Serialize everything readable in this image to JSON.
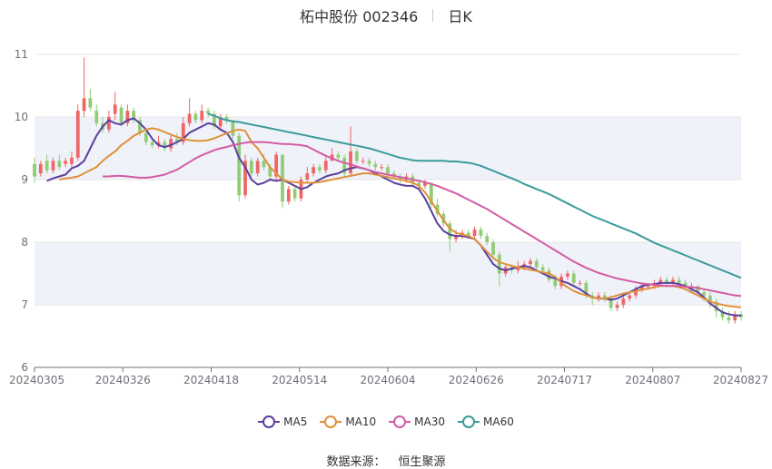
{
  "title": {
    "name": "柘中股份 002346",
    "period": "日K"
  },
  "source": {
    "label": "数据来源：",
    "value": "恒生聚源"
  },
  "chart_data": {
    "type": "candlestick",
    "ylim": [
      6,
      11
    ],
    "yticks": [
      6,
      7,
      8,
      9,
      10,
      11
    ],
    "xticks": [
      "20240305",
      "20240326",
      "20240418",
      "20240514",
      "20240604",
      "20240626",
      "20240717",
      "20240807",
      "20240827"
    ],
    "colors": {
      "up": "#ee6666",
      "down": "#91cc75",
      "ma5": "#5b3f9e",
      "ma10": "#e0913a",
      "ma30": "#d45ba3",
      "ma60": "#3b9b9b",
      "band": "#f0f2fa",
      "grid": "#e6e6e6",
      "axis": "#6e7079"
    },
    "legend": [
      {
        "name": "MA5",
        "key": "ma5"
      },
      {
        "name": "MA10",
        "key": "ma10"
      },
      {
        "name": "MA30",
        "key": "ma30"
      },
      {
        "name": "MA60",
        "key": "ma60"
      }
    ],
    "close": [
      9.05,
      9.25,
      9.15,
      9.3,
      9.2,
      9.3,
      9.35,
      10.1,
      10.3,
      10.15,
      9.9,
      9.8,
      10.0,
      10.2,
      9.9,
      10.1,
      9.95,
      9.75,
      9.6,
      9.55,
      9.6,
      9.5,
      9.65,
      9.6,
      9.9,
      10.05,
      9.95,
      10.1,
      10.05,
      9.85,
      10.0,
      9.95,
      9.7,
      8.75,
      9.3,
      9.1,
      9.3,
      9.2,
      9.05,
      9.4,
      8.65,
      8.85,
      8.7,
      9.0,
      9.1,
      9.2,
      9.15,
      9.3,
      9.4,
      9.35,
      9.1,
      9.45,
      9.3,
      9.3,
      9.25,
      9.2,
      9.2,
      9.1,
      9.05,
      9.0,
      9.05,
      8.95,
      8.9,
      8.95,
      8.6,
      8.45,
      8.3,
      8.05,
      8.1,
      8.15,
      8.1,
      8.2,
      8.1,
      8.0,
      7.8,
      7.5,
      7.6,
      7.55,
      7.6,
      7.65,
      7.7,
      7.6,
      7.55,
      7.4,
      7.3,
      7.45,
      7.5,
      7.35,
      7.35,
      7.15,
      7.1,
      7.15,
      7.1,
      6.95,
      7.0,
      7.1,
      7.15,
      7.25,
      7.3,
      7.3,
      7.35,
      7.4,
      7.35,
      7.4,
      7.35,
      7.3,
      7.3,
      7.2,
      7.15,
      7.05,
      6.9,
      6.8,
      6.75,
      6.85,
      6.8
    ],
    "open": [
      9.25,
      9.1,
      9.3,
      9.15,
      9.3,
      9.25,
      9.25,
      9.35,
      10.1,
      10.3,
      10.1,
      9.9,
      9.8,
      10.05,
      10.15,
      9.9,
      10.1,
      9.95,
      9.75,
      9.6,
      9.55,
      9.6,
      9.5,
      9.65,
      9.6,
      9.9,
      10.05,
      9.95,
      10.1,
      10.05,
      9.85,
      10.0,
      9.95,
      9.7,
      8.75,
      9.3,
      9.1,
      9.3,
      9.2,
      9.05,
      9.4,
      8.65,
      8.85,
      8.7,
      9.0,
      9.1,
      9.2,
      9.15,
      9.3,
      9.4,
      9.35,
      9.1,
      9.45,
      9.3,
      9.3,
      9.25,
      9.2,
      9.2,
      9.1,
      9.05,
      9.0,
      9.05,
      8.95,
      8.9,
      8.95,
      8.6,
      8.45,
      8.3,
      8.05,
      8.1,
      8.15,
      8.1,
      8.2,
      8.1,
      8.0,
      7.8,
      7.5,
      7.6,
      7.55,
      7.6,
      7.65,
      7.7,
      7.6,
      7.55,
      7.4,
      7.3,
      7.45,
      7.5,
      7.35,
      7.35,
      7.15,
      7.1,
      7.15,
      7.1,
      6.95,
      7.0,
      7.1,
      7.15,
      7.25,
      7.3,
      7.3,
      7.35,
      7.4,
      7.35,
      7.4,
      7.35,
      7.3,
      7.3,
      7.2,
      7.15,
      7.05,
      6.9,
      6.8,
      6.75,
      6.85
    ],
    "high": [
      9.35,
      9.3,
      9.4,
      9.35,
      9.4,
      9.35,
      9.45,
      10.2,
      10.95,
      10.45,
      10.2,
      10.0,
      10.1,
      10.4,
      10.2,
      10.2,
      10.15,
      10.0,
      9.8,
      9.65,
      9.7,
      9.65,
      9.7,
      9.75,
      10.0,
      10.3,
      10.1,
      10.2,
      10.15,
      10.1,
      10.05,
      10.05,
      9.95,
      9.75,
      9.4,
      9.35,
      9.35,
      9.4,
      9.25,
      9.45,
      9.4,
      8.9,
      8.9,
      9.05,
      9.2,
      9.25,
      9.25,
      9.4,
      9.5,
      9.45,
      9.4,
      9.85,
      9.5,
      9.35,
      9.35,
      9.3,
      9.25,
      9.25,
      9.15,
      9.1,
      9.1,
      9.1,
      9.0,
      9.0,
      8.95,
      8.7,
      8.5,
      8.35,
      8.2,
      8.2,
      8.2,
      8.25,
      8.25,
      8.15,
      8.05,
      7.85,
      7.65,
      7.65,
      7.7,
      7.7,
      7.75,
      7.75,
      7.65,
      7.6,
      7.45,
      7.5,
      7.55,
      7.55,
      7.4,
      7.4,
      7.2,
      7.2,
      7.2,
      7.15,
      7.05,
      7.15,
      7.2,
      7.3,
      7.35,
      7.35,
      7.4,
      7.45,
      7.45,
      7.45,
      7.45,
      7.4,
      7.35,
      7.3,
      7.25,
      7.2,
      7.1,
      6.95,
      6.9,
      6.9,
      6.9
    ],
    "low": [
      8.95,
      9.05,
      9.1,
      9.1,
      9.15,
      9.2,
      9.2,
      9.3,
      10.0,
      10.1,
      9.85,
      9.75,
      9.75,
      9.95,
      9.85,
      9.85,
      9.9,
      9.7,
      9.55,
      9.5,
      9.5,
      9.45,
      9.45,
      9.55,
      9.55,
      9.85,
      9.9,
      9.9,
      10.0,
      9.8,
      9.8,
      9.9,
      9.65,
      8.65,
      8.7,
      9.05,
      9.05,
      9.15,
      9.0,
      9.0,
      8.55,
      8.6,
      8.65,
      8.65,
      8.95,
      9.05,
      9.1,
      9.1,
      9.3,
      9.3,
      9.05,
      9.05,
      9.25,
      9.25,
      9.2,
      9.15,
      9.15,
      9.05,
      9.0,
      8.95,
      8.95,
      8.9,
      8.85,
      8.85,
      8.55,
      8.4,
      8.25,
      7.85,
      8.0,
      8.05,
      8.05,
      8.05,
      8.05,
      7.95,
      7.75,
      7.3,
      7.45,
      7.5,
      7.5,
      7.55,
      7.6,
      7.55,
      7.5,
      7.35,
      7.25,
      7.25,
      7.4,
      7.3,
      7.3,
      7.1,
      7.0,
      7.05,
      7.05,
      6.9,
      6.9,
      6.95,
      7.05,
      7.1,
      7.2,
      7.25,
      7.25,
      7.3,
      7.3,
      7.3,
      7.3,
      7.25,
      7.2,
      7.15,
      7.05,
      6.95,
      6.8,
      6.75,
      6.7,
      6.7,
      6.75
    ],
    "ma5": [
      8.98,
      9.02,
      9.05,
      9.08,
      9.18,
      9.22,
      9.3,
      9.5,
      9.7,
      9.85,
      9.95,
      9.9,
      9.88,
      9.95,
      9.98,
      9.9,
      9.8,
      9.65,
      9.55,
      9.52,
      9.55,
      9.6,
      9.65,
      9.75,
      9.8,
      9.85,
      9.9,
      9.88,
      9.8,
      9.75,
      9.6,
      9.35,
      9.2,
      9.0,
      8.92,
      8.95,
      9.0,
      8.98,
      9.0,
      8.95,
      8.9,
      8.85,
      8.88,
      8.95,
      9.0,
      9.05,
      9.08,
      9.1,
      9.15,
      9.18,
      9.2,
      9.18,
      9.15,
      9.1,
      9.05,
      9.0,
      8.95,
      8.92,
      8.9,
      8.9,
      8.85,
      8.7,
      8.5,
      8.3,
      8.18,
      8.12,
      8.1,
      8.1,
      8.08,
      8.05,
      7.95,
      7.8,
      7.65,
      7.58,
      7.55,
      7.58,
      7.6,
      7.62,
      7.6,
      7.55,
      7.5,
      7.45,
      7.42,
      7.38,
      7.35,
      7.3,
      7.25,
      7.18,
      7.12,
      7.1,
      7.1,
      7.08,
      7.1,
      7.15,
      7.2,
      7.25,
      7.3,
      7.32,
      7.33,
      7.35,
      7.35,
      7.35,
      7.33,
      7.3,
      7.25,
      7.2,
      7.12,
      7.02,
      6.95,
      6.88,
      6.85,
      6.83,
      6.83
    ],
    "ma10": [
      9.0,
      9.02,
      9.03,
      9.05,
      9.1,
      9.15,
      9.2,
      9.3,
      9.38,
      9.45,
      9.55,
      9.62,
      9.7,
      9.75,
      9.8,
      9.82,
      9.8,
      9.76,
      9.72,
      9.68,
      9.65,
      9.63,
      9.62,
      9.62,
      9.63,
      9.66,
      9.7,
      9.74,
      9.78,
      9.8,
      9.78,
      9.6,
      9.5,
      9.35,
      9.2,
      9.1,
      9.0,
      8.97,
      8.96,
      8.95,
      8.95,
      8.95,
      8.96,
      8.98,
      9.0,
      9.02,
      9.04,
      9.06,
      9.08,
      9.1,
      9.1,
      9.08,
      9.06,
      9.04,
      9.02,
      9.0,
      8.98,
      8.95,
      8.9,
      8.8,
      8.65,
      8.5,
      8.35,
      8.22,
      8.15,
      8.12,
      8.1,
      8.05,
      7.95,
      7.85,
      7.75,
      7.68,
      7.65,
      7.62,
      7.6,
      7.58,
      7.56,
      7.54,
      7.52,
      7.5,
      7.45,
      7.35,
      7.28,
      7.22,
      7.18,
      7.15,
      7.12,
      7.1,
      7.1,
      7.12,
      7.15,
      7.18,
      7.2,
      7.22,
      7.24,
      7.26,
      7.28,
      7.3,
      7.3,
      7.3,
      7.28,
      7.25,
      7.2,
      7.15,
      7.1,
      7.05,
      7.02,
      7.0,
      6.98,
      6.97,
      6.96
    ],
    "ma30": [
      9.05,
      9.05,
      9.06,
      9.06,
      9.05,
      9.04,
      9.03,
      9.03,
      9.04,
      9.06,
      9.08,
      9.12,
      9.16,
      9.22,
      9.28,
      9.34,
      9.39,
      9.43,
      9.47,
      9.5,
      9.52,
      9.55,
      9.57,
      9.59,
      9.6,
      9.6,
      9.6,
      9.59,
      9.58,
      9.57,
      9.57,
      9.56,
      9.55,
      9.53,
      9.48,
      9.43,
      9.38,
      9.34,
      9.3,
      9.27,
      9.24,
      9.21,
      9.18,
      9.15,
      9.12,
      9.1,
      9.08,
      9.06,
      9.04,
      9.02,
      9.0,
      8.98,
      8.96,
      8.93,
      8.9,
      8.86,
      8.82,
      8.78,
      8.73,
      8.68,
      8.63,
      8.58,
      8.53,
      8.47,
      8.41,
      8.35,
      8.29,
      8.23,
      8.17,
      8.11,
      8.05,
      7.99,
      7.93,
      7.87,
      7.81,
      7.75,
      7.69,
      7.64,
      7.59,
      7.55,
      7.51,
      7.48,
      7.45,
      7.42,
      7.4,
      7.38,
      7.36,
      7.34,
      7.33,
      7.32,
      7.31,
      7.3,
      7.3,
      7.3,
      7.29,
      7.28,
      7.27,
      7.25,
      7.23,
      7.21,
      7.19,
      7.17,
      7.15,
      7.14
    ],
    "ma60": [
      10.05,
      10.02,
      9.98,
      9.95,
      9.93,
      9.92,
      9.9,
      9.88,
      9.86,
      9.84,
      9.82,
      9.8,
      9.78,
      9.76,
      9.74,
      9.72,
      9.7,
      9.68,
      9.66,
      9.64,
      9.62,
      9.6,
      9.58,
      9.56,
      9.54,
      9.52,
      9.5,
      9.47,
      9.44,
      9.41,
      9.38,
      9.35,
      9.33,
      9.31,
      9.3,
      9.3,
      9.3,
      9.3,
      9.3,
      9.29,
      9.29,
      9.28,
      9.27,
      9.25,
      9.22,
      9.18,
      9.14,
      9.1,
      9.06,
      9.02,
      8.98,
      8.93,
      8.89,
      8.85,
      8.81,
      8.77,
      8.72,
      8.67,
      8.62,
      8.57,
      8.52,
      8.47,
      8.42,
      8.38,
      8.34,
      8.3,
      8.26,
      8.22,
      8.18,
      8.14,
      8.09,
      8.04,
      7.99,
      7.95,
      7.91,
      7.87,
      7.83,
      7.79,
      7.75,
      7.71,
      7.67,
      7.63,
      7.59,
      7.55,
      7.51,
      7.47,
      7.43
    ]
  }
}
